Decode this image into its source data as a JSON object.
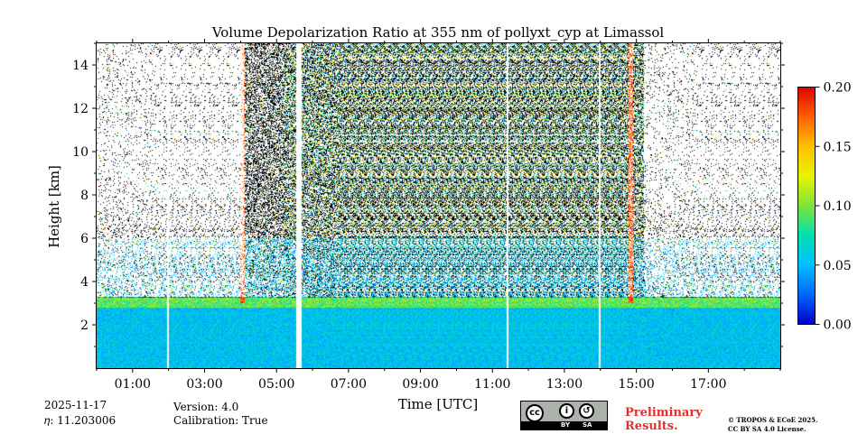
{
  "chart_data": {
    "type": "heatmap",
    "title": "Volume Depolarization Ratio at 355 nm of pollyxt_cyp at Limassol",
    "xlabel": "Time [UTC]",
    "ylabel": "Height [km]",
    "x_range_hours": [
      0,
      19
    ],
    "ylim": [
      0,
      15
    ],
    "x_ticks": [
      {
        "label": "01:00",
        "hour": 1
      },
      {
        "label": "03:00",
        "hour": 3
      },
      {
        "label": "05:00",
        "hour": 5
      },
      {
        "label": "07:00",
        "hour": 7
      },
      {
        "label": "09:00",
        "hour": 9
      },
      {
        "label": "11:00",
        "hour": 11
      },
      {
        "label": "13:00",
        "hour": 13
      },
      {
        "label": "15:00",
        "hour": 15
      },
      {
        "label": "17:00",
        "hour": 17
      }
    ],
    "y_ticks": [
      {
        "label": "2",
        "value": 2
      },
      {
        "label": "4",
        "value": 4
      },
      {
        "label": "6",
        "value": 6
      },
      {
        "label": "8",
        "value": 8
      },
      {
        "label": "10",
        "value": 10
      },
      {
        "label": "12",
        "value": 12
      },
      {
        "label": "14",
        "value": 14
      }
    ],
    "colorbar": {
      "vmin": 0.0,
      "vmax": 0.2,
      "colormap": [
        "#0000c8",
        "#0066ff",
        "#00bfff",
        "#00e0b0",
        "#7fe33a",
        "#e6f500",
        "#ffc000",
        "#ff6000",
        "#e00000"
      ],
      "ticks": [
        {
          "label": "0.00",
          "value": 0.0
        },
        {
          "label": "0.05",
          "value": 0.05
        },
        {
          "label": "0.10",
          "value": 0.1
        },
        {
          "label": "0.15",
          "value": 0.15
        },
        {
          "label": "0.20",
          "value": 0.2
        }
      ]
    },
    "features": {
      "aerosol_layer_top_km": 3.0,
      "gaps_hours": [
        5.55,
        5.6
      ],
      "white_lines_hours": [
        1.98,
        11.42,
        13.97
      ],
      "high_depol_columns_hours": [
        4.05,
        14.85
      ]
    }
  },
  "footer": {
    "date": "2025-11-17",
    "eta": "𝜂: 11.203006",
    "version": "Version: 4.0",
    "calibration": "Calibration: True",
    "preliminary_line1": "Preliminary",
    "preliminary_line2": "Results.",
    "copyright_line1": "© TROPOS & ECoE 2025.",
    "copyright_line2": "CC BY SA 4.0 License.",
    "license_badge": {
      "cc": "cc",
      "by": "BY",
      "sa": "SA"
    }
  }
}
